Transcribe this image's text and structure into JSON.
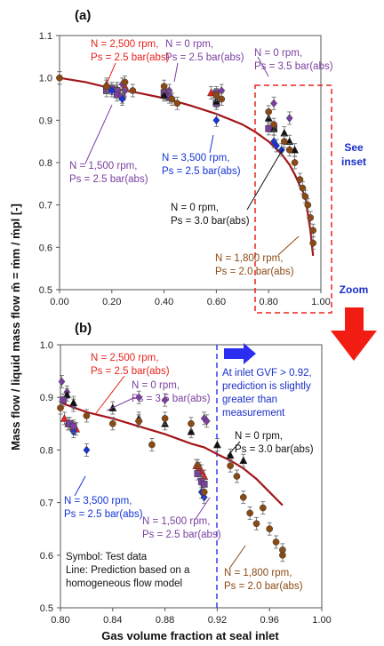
{
  "xlabel": "Gas volume fraction at seal inlet",
  "ylabel": "Mass flow / liquid mass flow m̄ = ṁm / ṁpl [-]",
  "panels": {
    "a": {
      "label": "(a)",
      "see_inset": [
        "See",
        "inset"
      ],
      "zoom": "Zoom",
      "x_ticks": [
        "0.00",
        "0.20",
        "0.40",
        "0.60",
        "0.80",
        "1.00"
      ],
      "y_ticks": [
        "0.5",
        "0.6",
        "0.7",
        "0.8",
        "0.9",
        "1.0",
        "1.1"
      ],
      "annotations": {
        "n2500": [
          "N = 2,500 rpm,",
          "Ps = 2.5 bar(abs)"
        ],
        "n0_25": [
          "N = 0 rpm,",
          "Ps = 2.5 bar(abs)"
        ],
        "n0_35": [
          "N = 0 rpm,",
          "Ps = 3.5 bar(abs)"
        ],
        "n1500": [
          "N = 1,500 rpm,",
          "Ps = 2.5 bar(abs)"
        ],
        "n3500": [
          "N = 3,500 rpm,",
          "Ps = 2.5 bar(abs)"
        ],
        "n0_30": [
          "N = 0 rpm,",
          "Ps = 3.0 bar(abs)"
        ],
        "n1800": [
          "N = 1,800 rpm,",
          "Ps = 2.0 bar(abs)"
        ]
      }
    },
    "b": {
      "label": "(b)",
      "x_ticks": [
        "0.80",
        "0.84",
        "0.88",
        "0.92",
        "0.96",
        "1.00"
      ],
      "y_ticks": [
        "0.5",
        "0.6",
        "0.7",
        "0.8",
        "0.9",
        "1.0"
      ],
      "gvf_note": [
        "At inlet GVF > 0.92,",
        "prediction is slightly",
        "greater than",
        "measurement"
      ],
      "legend_notes": [
        "Symbol: Test data",
        "Line: Prediction based on a",
        "homogeneous flow model"
      ],
      "annotations": {
        "n2500": [
          "N = 2,500 rpm,",
          "Ps = 2.5 bar(abs)"
        ],
        "n0_35": [
          "N = 0 rpm,",
          "Ps = 3.5 bar(abs)"
        ],
        "n0_30": [
          "N = 0 rpm,",
          "Ps = 3.0 bar(abs)"
        ],
        "n3500": [
          "N = 3,500 rpm,",
          "Ps = 2.5 bar(abs)"
        ],
        "n1500": [
          "N = 1,500 rpm,",
          "Ps = 2.5 bar(abs)"
        ],
        "n1800": [
          "N = 1,800 rpm,",
          "Ps = 2.0 bar(abs)"
        ]
      }
    }
  },
  "colors": {
    "red": "#e8231c",
    "purple": "#7b3fa0",
    "blue": "#1535d6",
    "black": "#111111",
    "brown": "#8b4a14",
    "line": "#a3161a",
    "zoom_arrow": "#f21d12",
    "gvf_arrow": "#2b2ef0"
  },
  "chart_data": [
    {
      "panel": "a",
      "type": "scatter",
      "xlim": [
        0,
        1.0
      ],
      "ylim": [
        0.5,
        1.1
      ],
      "prediction_line": {
        "x": [
          0.0,
          0.1,
          0.2,
          0.3,
          0.4,
          0.5,
          0.6,
          0.7,
          0.75,
          0.8,
          0.85,
          0.88,
          0.9,
          0.92,
          0.94,
          0.95,
          0.96,
          0.97
        ],
        "y": [
          1.0,
          0.99,
          0.975,
          0.965,
          0.952,
          0.935,
          0.915,
          0.89,
          0.872,
          0.85,
          0.82,
          0.795,
          0.772,
          0.745,
          0.72,
          0.68,
          0.64,
          0.58
        ]
      },
      "series": [
        {
          "name": "N = 2,500 rpm, Ps = 2.5 bar(abs)",
          "marker": "triangle",
          "color": "red",
          "x": [
            0.18,
            0.22,
            0.25,
            0.58,
            0.6
          ],
          "y": [
            0.98,
            0.975,
            0.98,
            0.965,
            0.96
          ]
        },
        {
          "name": "N = 0 rpm, Ps = 2.5 bar(abs)",
          "marker": "square",
          "color": "purple",
          "x": [
            0.2,
            0.22,
            0.4,
            0.41,
            0.6,
            0.82
          ],
          "y": [
            0.975,
            0.97,
            0.965,
            0.96,
            0.965,
            0.88
          ]
        },
        {
          "name": "N = 0 rpm, Ps = 3.5 bar(abs)",
          "marker": "diamond",
          "color": "purple",
          "x": [
            0.0,
            0.24,
            0.25,
            0.42,
            0.62,
            0.82,
            0.88
          ],
          "y": [
            1.0,
            0.985,
            0.97,
            0.97,
            0.97,
            0.94,
            0.905
          ]
        },
        {
          "name": "N = 1,500 rpm, Ps = 2.5 bar(abs)",
          "marker": "square",
          "color": "purple",
          "x": [
            0.18,
            0.22,
            0.24,
            0.42,
            0.6,
            0.8
          ],
          "y": [
            0.97,
            0.96,
            0.955,
            0.955,
            0.94,
            0.88
          ]
        },
        {
          "name": "N = 3,500 rpm, Ps = 2.5 bar(abs)",
          "marker": "diamond",
          "color": "blue",
          "x": [
            0.2,
            0.24,
            0.6,
            0.82,
            0.83,
            0.85
          ],
          "y": [
            0.97,
            0.95,
            0.9,
            0.85,
            0.84,
            0.83
          ]
        },
        {
          "name": "N = 0 rpm, Ps = 3.0 bar(abs)",
          "marker": "triangle",
          "color": "black",
          "x": [
            0.18,
            0.4,
            0.6,
            0.8,
            0.82,
            0.86,
            0.88,
            0.9
          ],
          "y": [
            0.985,
            0.96,
            0.945,
            0.905,
            0.88,
            0.87,
            0.85,
            0.83
          ]
        },
        {
          "name": "N = 1,800 rpm, Ps = 2.0 bar(abs)",
          "marker": "circle",
          "color": "brown",
          "x": [
            0.0,
            0.18,
            0.25,
            0.28,
            0.4,
            0.43,
            0.45,
            0.6,
            0.62,
            0.8,
            0.82,
            0.86,
            0.88,
            0.9,
            0.92,
            0.93,
            0.94,
            0.95,
            0.96,
            0.97,
            0.97
          ],
          "y": [
            1.0,
            0.98,
            0.99,
            0.97,
            0.98,
            0.95,
            0.94,
            0.96,
            0.95,
            0.92,
            0.89,
            0.85,
            0.83,
            0.8,
            0.76,
            0.74,
            0.72,
            0.7,
            0.67,
            0.64,
            0.61
          ]
        }
      ]
    },
    {
      "panel": "b",
      "type": "scatter",
      "xlim": [
        0.8,
        1.0
      ],
      "ylim": [
        0.5,
        1.0
      ],
      "prediction_line": {
        "x": [
          0.8,
          0.82,
          0.84,
          0.86,
          0.88,
          0.9,
          0.91,
          0.92,
          0.93,
          0.94,
          0.95,
          0.96,
          0.97
        ],
        "y": [
          0.89,
          0.872,
          0.86,
          0.845,
          0.83,
          0.812,
          0.805,
          0.792,
          0.78,
          0.765,
          0.745,
          0.72,
          0.695
        ]
      },
      "series": [
        {
          "name": "N = 2,500 rpm, Ps = 2.5 bar(abs)",
          "marker": "triangle",
          "color": "red",
          "x": [
            0.803,
            0.806,
            0.81,
            0.812,
            0.904,
            0.906,
            0.908,
            0.91
          ],
          "y": [
            0.86,
            0.85,
            0.842,
            0.84,
            0.77,
            0.765,
            0.76,
            0.75
          ]
        },
        {
          "name": "N = 0 rpm, Ps = 3.5 bar(abs)",
          "marker": "diamond",
          "color": "purple",
          "x": [
            0.801,
            0.805,
            0.81,
            0.86,
            0.88,
            0.91,
            0.912
          ],
          "y": [
            0.93,
            0.91,
            0.885,
            0.9,
            0.895,
            0.86,
            0.855
          ]
        },
        {
          "name": "N = 0 rpm, Ps = 3.0 bar(abs)",
          "marker": "triangle",
          "color": "black",
          "x": [
            0.805,
            0.81,
            0.84,
            0.86,
            0.88,
            0.9,
            0.92,
            0.93,
            0.94
          ],
          "y": [
            0.905,
            0.89,
            0.88,
            0.86,
            0.85,
            0.835,
            0.81,
            0.79,
            0.78
          ]
        },
        {
          "name": "N = 3,500 rpm, Ps = 2.5 bar(abs)",
          "marker": "diamond",
          "color": "blue",
          "x": [
            0.806,
            0.81,
            0.82,
            0.908,
            0.91
          ],
          "y": [
            0.85,
            0.835,
            0.8,
            0.72,
            0.71
          ]
        },
        {
          "name": "N = 1,500 rpm, Ps = 2.5 bar(abs)",
          "marker": "square",
          "color": "purple",
          "x": [
            0.802,
            0.807,
            0.81,
            0.905,
            0.908,
            0.91
          ],
          "y": [
            0.895,
            0.85,
            0.845,
            0.755,
            0.74,
            0.735
          ]
        },
        {
          "name": "N = 1,800 rpm, Ps = 2.0 bar(abs)",
          "marker": "circle",
          "color": "brown",
          "x": [
            0.8,
            0.82,
            0.84,
            0.86,
            0.87,
            0.88,
            0.9,
            0.905,
            0.91,
            0.93,
            0.935,
            0.94,
            0.945,
            0.95,
            0.955,
            0.96,
            0.965,
            0.97,
            0.97
          ],
          "y": [
            0.88,
            0.865,
            0.85,
            0.855,
            0.81,
            0.86,
            0.85,
            0.77,
            0.72,
            0.77,
            0.75,
            0.71,
            0.68,
            0.66,
            0.69,
            0.65,
            0.625,
            0.61,
            0.6
          ]
        }
      ]
    }
  ]
}
